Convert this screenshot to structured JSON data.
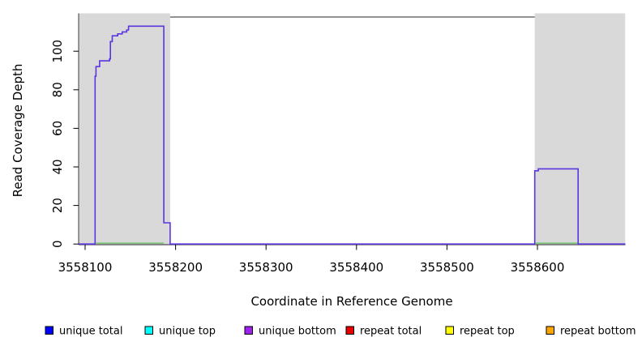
{
  "chart_data": {
    "type": "line",
    "title": "",
    "xlabel": "Coordinate in Reference Genome",
    "ylabel": "Read Coverage Depth",
    "xlim": [
      3558093,
      3558697
    ],
    "ylim": [
      0,
      118
    ],
    "x_ticks": [
      3558100,
      3558200,
      3558300,
      3558400,
      3558500,
      3558600
    ],
    "y_ticks": [
      0,
      20,
      40,
      60,
      80,
      100
    ],
    "grid": false,
    "legend_position": "bottom",
    "shaded_regions": [
      {
        "start": 3558093,
        "end": 3558194,
        "color": "#D9D9D9"
      },
      {
        "start": 3558597,
        "end": 3558697,
        "color": "#D9D9D9"
      }
    ],
    "series": [
      {
        "name": "unique coverage step line",
        "color": "#5B35E0",
        "style": "step",
        "start_x": 3558093,
        "start_depth": 0,
        "step_points": [
          [
            3558111,
            87
          ],
          [
            3558112,
            92
          ],
          [
            3558116,
            95
          ],
          [
            3558127,
            96
          ],
          [
            3558128,
            105
          ],
          [
            3558130,
            108
          ],
          [
            3558136,
            109
          ],
          [
            3558141,
            110
          ],
          [
            3558146,
            111
          ],
          [
            3558148,
            113
          ],
          [
            3558187,
            11
          ],
          [
            3558194,
            0
          ],
          [
            3558597,
            38
          ],
          [
            3558601,
            39
          ],
          [
            3558645,
            0
          ]
        ],
        "end_x": 3558697
      },
      {
        "name": "baseline green segments",
        "color": "#5FBE5F",
        "style": "segments",
        "depth": 0,
        "segments": [
          [
            3558112,
            3558187
          ],
          [
            3558598,
            3558645
          ]
        ]
      }
    ],
    "legend": [
      {
        "label": "unique total",
        "color": "#0000FF"
      },
      {
        "label": "unique top",
        "color": "#00FFFF"
      },
      {
        "label": "unique bottom",
        "color": "#A020F0"
      },
      {
        "label": "repeat total",
        "color": "#E60000"
      },
      {
        "label": "repeat top",
        "color": "#FFFF00"
      },
      {
        "label": "repeat bottom",
        "color": "#FFA500"
      }
    ]
  }
}
